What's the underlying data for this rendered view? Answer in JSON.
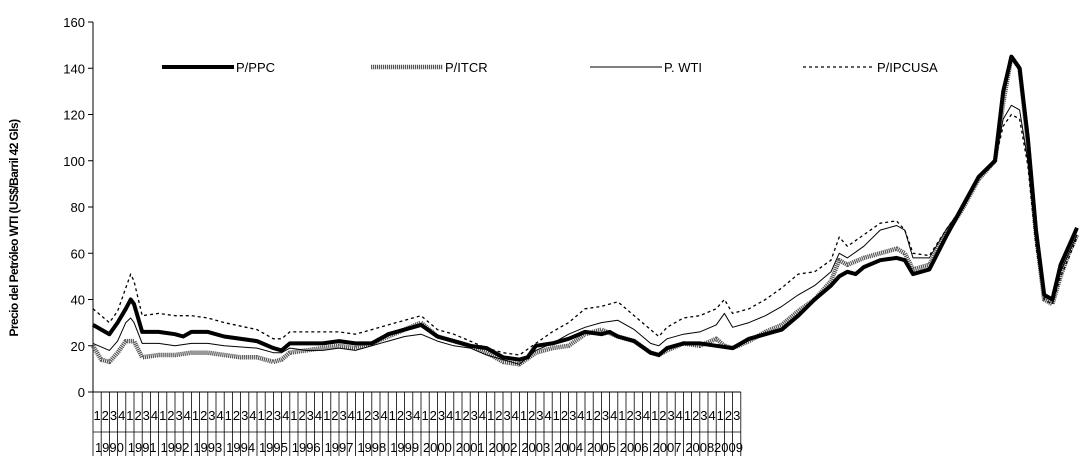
{
  "chart_data": {
    "type": "line",
    "ylabel": "Precio del Petróleo WTI (US$/Barril 42 Gls)",
    "ylim": [
      0,
      160
    ],
    "yticks": [
      0,
      20,
      40,
      60,
      80,
      100,
      120,
      140,
      160
    ],
    "quarter_labels": [
      "1",
      "2",
      "3",
      "4"
    ],
    "years": [
      "1990",
      "1991",
      "1992",
      "1993",
      "1994",
      "1995",
      "1996",
      "1997",
      "1998",
      "1999",
      "2000",
      "2001",
      "2002",
      "2003",
      "2004",
      "2005",
      "2006",
      "2007",
      "2008",
      "2009"
    ],
    "last_year_quarters": 3,
    "grid": false,
    "legend_position": "top",
    "series": [
      {
        "name": "P/PPC",
        "style": "thick-solid",
        "color": "#000000",
        "points": [
          [
            0,
            29
          ],
          [
            2,
            25
          ],
          [
            3,
            30
          ],
          [
            4,
            36
          ],
          [
            4.6,
            40
          ],
          [
            5,
            38
          ],
          [
            6,
            26
          ],
          [
            8,
            26
          ],
          [
            10,
            25
          ],
          [
            11,
            24
          ],
          [
            12,
            26
          ],
          [
            14,
            26
          ],
          [
            16,
            24
          ],
          [
            20,
            22
          ],
          [
            22,
            19
          ],
          [
            23,
            18
          ],
          [
            24,
            21
          ],
          [
            26,
            21
          ],
          [
            28,
            21
          ],
          [
            30,
            22
          ],
          [
            32,
            21
          ],
          [
            34,
            21
          ],
          [
            36,
            25
          ],
          [
            38,
            27
          ],
          [
            39,
            28
          ],
          [
            40,
            29
          ],
          [
            42,
            24
          ],
          [
            44,
            22
          ],
          [
            46,
            20
          ],
          [
            48,
            19
          ],
          [
            50,
            15
          ],
          [
            52,
            14
          ],
          [
            53,
            15
          ],
          [
            54,
            20
          ],
          [
            56,
            21
          ],
          [
            58,
            23
          ],
          [
            60,
            26
          ],
          [
            62,
            25
          ],
          [
            63,
            26
          ],
          [
            64,
            24
          ],
          [
            66,
            22
          ],
          [
            68,
            17
          ],
          [
            69,
            16
          ],
          [
            70,
            19
          ],
          [
            72,
            21
          ],
          [
            74,
            21
          ],
          [
            76,
            20
          ],
          [
            78,
            19
          ],
          [
            80,
            23
          ],
          [
            82,
            25
          ],
          [
            84,
            27
          ],
          [
            86,
            33
          ],
          [
            88,
            40
          ],
          [
            90,
            46
          ],
          [
            91,
            50
          ],
          [
            92,
            52
          ],
          [
            93,
            51
          ],
          [
            94,
            54
          ],
          [
            96,
            57
          ],
          [
            98,
            58
          ],
          [
            99,
            57
          ],
          [
            100,
            51
          ],
          [
            102,
            53
          ],
          [
            104,
            67
          ],
          [
            106,
            80
          ],
          [
            108,
            93
          ],
          [
            110,
            100
          ],
          [
            111,
            130
          ],
          [
            112,
            145
          ],
          [
            113,
            140
          ],
          [
            114,
            110
          ],
          [
            115,
            70
          ],
          [
            116,
            42
          ],
          [
            117,
            40
          ],
          [
            118,
            55
          ],
          [
            119,
            63
          ],
          [
            120,
            71
          ]
        ]
      },
      {
        "name": "P/ITCR",
        "style": "thick-dotted",
        "color": "#555555",
        "points": [
          [
            0,
            20
          ],
          [
            1,
            14
          ],
          [
            2,
            13
          ],
          [
            3,
            17
          ],
          [
            4,
            22
          ],
          [
            5,
            22
          ],
          [
            6,
            15
          ],
          [
            8,
            16
          ],
          [
            10,
            16
          ],
          [
            12,
            17
          ],
          [
            14,
            17
          ],
          [
            16,
            16
          ],
          [
            18,
            15
          ],
          [
            20,
            15
          ],
          [
            22,
            13
          ],
          [
            23,
            14
          ],
          [
            24,
            17
          ],
          [
            26,
            18
          ],
          [
            28,
            19
          ],
          [
            30,
            20
          ],
          [
            32,
            19
          ],
          [
            34,
            21
          ],
          [
            36,
            24
          ],
          [
            38,
            27
          ],
          [
            40,
            30
          ],
          [
            42,
            24
          ],
          [
            44,
            22
          ],
          [
            46,
            20
          ],
          [
            48,
            17
          ],
          [
            50,
            13
          ],
          [
            52,
            12
          ],
          [
            54,
            17
          ],
          [
            56,
            19
          ],
          [
            58,
            20
          ],
          [
            60,
            25
          ],
          [
            62,
            27
          ],
          [
            64,
            24
          ],
          [
            66,
            22
          ],
          [
            68,
            17
          ],
          [
            69,
            16
          ],
          [
            70,
            18
          ],
          [
            72,
            21
          ],
          [
            74,
            20
          ],
          [
            76,
            23
          ],
          [
            77,
            20
          ],
          [
            78,
            19
          ],
          [
            80,
            22
          ],
          [
            82,
            26
          ],
          [
            84,
            29
          ],
          [
            86,
            35
          ],
          [
            88,
            40
          ],
          [
            90,
            48
          ],
          [
            91,
            57
          ],
          [
            92,
            55
          ],
          [
            94,
            58
          ],
          [
            96,
            60
          ],
          [
            98,
            62
          ],
          [
            99,
            60
          ],
          [
            100,
            53
          ],
          [
            102,
            55
          ],
          [
            104,
            68
          ],
          [
            106,
            79
          ],
          [
            108,
            92
          ],
          [
            110,
            100
          ],
          [
            111,
            125
          ],
          [
            112,
            145
          ],
          [
            113,
            140
          ],
          [
            114,
            108
          ],
          [
            115,
            68
          ],
          [
            116,
            40
          ],
          [
            117,
            38
          ],
          [
            118,
            50
          ],
          [
            119,
            60
          ],
          [
            120,
            68
          ]
        ]
      },
      {
        "name": "P. WTI",
        "style": "thin-solid",
        "color": "#000000",
        "points": [
          [
            0,
            21
          ],
          [
            2,
            18
          ],
          [
            3,
            22
          ],
          [
            4,
            30
          ],
          [
            4.6,
            32
          ],
          [
            5,
            30
          ],
          [
            6,
            21
          ],
          [
            8,
            21
          ],
          [
            10,
            20
          ],
          [
            12,
            21
          ],
          [
            14,
            21
          ],
          [
            16,
            20
          ],
          [
            20,
            19
          ],
          [
            22,
            17
          ],
          [
            23,
            17
          ],
          [
            24,
            19
          ],
          [
            26,
            18
          ],
          [
            28,
            18
          ],
          [
            30,
            19
          ],
          [
            32,
            18
          ],
          [
            34,
            20
          ],
          [
            36,
            22
          ],
          [
            38,
            24
          ],
          [
            40,
            25
          ],
          [
            42,
            22
          ],
          [
            44,
            20
          ],
          [
            46,
            19
          ],
          [
            48,
            16
          ],
          [
            50,
            14
          ],
          [
            52,
            12
          ],
          [
            54,
            18
          ],
          [
            56,
            21
          ],
          [
            58,
            25
          ],
          [
            60,
            28
          ],
          [
            62,
            30
          ],
          [
            64,
            31
          ],
          [
            66,
            27
          ],
          [
            68,
            21
          ],
          [
            69,
            20
          ],
          [
            70,
            23
          ],
          [
            72,
            25
          ],
          [
            74,
            26
          ],
          [
            76,
            29
          ],
          [
            77,
            34
          ],
          [
            78,
            28
          ],
          [
            80,
            30
          ],
          [
            82,
            33
          ],
          [
            84,
            37
          ],
          [
            86,
            42
          ],
          [
            88,
            46
          ],
          [
            90,
            52
          ],
          [
            91,
            60
          ],
          [
            92,
            58
          ],
          [
            94,
            63
          ],
          [
            96,
            70
          ],
          [
            98,
            72
          ],
          [
            99,
            70
          ],
          [
            100,
            58
          ],
          [
            102,
            58
          ],
          [
            104,
            70
          ],
          [
            106,
            80
          ],
          [
            108,
            93
          ],
          [
            110,
            100
          ],
          [
            111,
            118
          ],
          [
            112,
            124
          ],
          [
            113,
            122
          ],
          [
            114,
            100
          ],
          [
            115,
            65
          ],
          [
            116,
            42
          ],
          [
            117,
            40
          ],
          [
            118,
            52
          ],
          [
            119,
            60
          ],
          [
            120,
            68
          ]
        ]
      },
      {
        "name": "P/IPCUSA",
        "style": "dashed",
        "color": "#000000",
        "points": [
          [
            0,
            36
          ],
          [
            2,
            30
          ],
          [
            3,
            35
          ],
          [
            4,
            45
          ],
          [
            4.6,
            51
          ],
          [
            5,
            48
          ],
          [
            6,
            33
          ],
          [
            8,
            34
          ],
          [
            10,
            33
          ],
          [
            12,
            33
          ],
          [
            14,
            32
          ],
          [
            16,
            30
          ],
          [
            20,
            27
          ],
          [
            22,
            23
          ],
          [
            23,
            23
          ],
          [
            24,
            26
          ],
          [
            26,
            26
          ],
          [
            28,
            26
          ],
          [
            30,
            26
          ],
          [
            32,
            25
          ],
          [
            34,
            27
          ],
          [
            36,
            29
          ],
          [
            38,
            31
          ],
          [
            40,
            33
          ],
          [
            42,
            27
          ],
          [
            44,
            25
          ],
          [
            46,
            22
          ],
          [
            48,
            19
          ],
          [
            50,
            17
          ],
          [
            52,
            16
          ],
          [
            54,
            21
          ],
          [
            56,
            26
          ],
          [
            58,
            30
          ],
          [
            60,
            36
          ],
          [
            62,
            37
          ],
          [
            64,
            39
          ],
          [
            66,
            33
          ],
          [
            68,
            27
          ],
          [
            69,
            24
          ],
          [
            70,
            28
          ],
          [
            72,
            32
          ],
          [
            74,
            33
          ],
          [
            76,
            36
          ],
          [
            77,
            40
          ],
          [
            78,
            34
          ],
          [
            80,
            36
          ],
          [
            82,
            40
          ],
          [
            84,
            45
          ],
          [
            86,
            51
          ],
          [
            88,
            52
          ],
          [
            90,
            57
          ],
          [
            91,
            67
          ],
          [
            92,
            63
          ],
          [
            94,
            68
          ],
          [
            96,
            73
          ],
          [
            98,
            74
          ],
          [
            99,
            70
          ],
          [
            100,
            60
          ],
          [
            102,
            59
          ],
          [
            104,
            70
          ],
          [
            106,
            80
          ],
          [
            108,
            93
          ],
          [
            110,
            100
          ],
          [
            111,
            115
          ],
          [
            112,
            120
          ],
          [
            113,
            118
          ],
          [
            114,
            98
          ],
          [
            115,
            63
          ],
          [
            116,
            40
          ],
          [
            117,
            38
          ],
          [
            118,
            50
          ],
          [
            119,
            58
          ],
          [
            120,
            67
          ]
        ]
      }
    ]
  }
}
